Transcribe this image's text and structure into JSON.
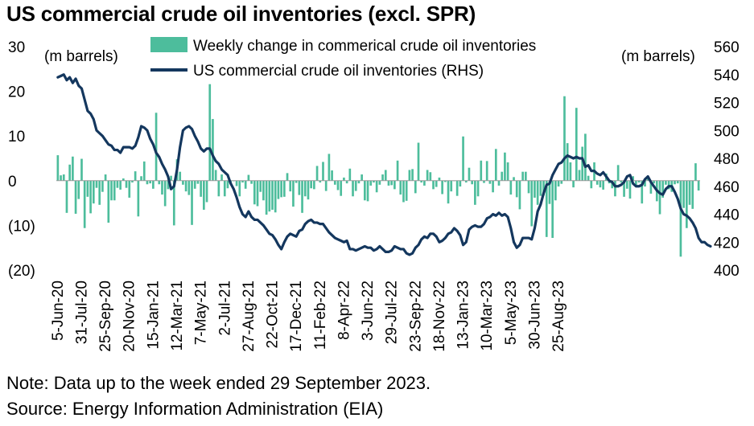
{
  "title": "US commercial crude oil inventories (excl. SPR)",
  "note": "Note: Data up to the week ended 29 September 2023.",
  "source": "Source: Energy Information Administration (EIA)",
  "colors": {
    "bar": "#4dbd9c",
    "line": "#14375e"
  },
  "chart_data": {
    "type": "bar+line",
    "left_axis_unit": "(m barrels)",
    "right_axis_unit": "(m barrels)",
    "left_ticks": [
      "30",
      "20",
      "10",
      "0",
      "(10)",
      "(20)"
    ],
    "left_ylim": [
      -20,
      30
    ],
    "right_ticks": [
      "560",
      "540",
      "520",
      "500",
      "480",
      "460",
      "440",
      "420",
      "400"
    ],
    "right_ylim": [
      400,
      560
    ],
    "x_ticks": [
      "5-Jun-20",
      "31-Jul-20",
      "25-Sep-20",
      "20-Nov-20",
      "15-Jan-21",
      "12-Mar-21",
      "7-May-21",
      "2-Jul-21",
      "27-Aug-21",
      "22-Oct-21",
      "17-Dec-21",
      "11-Feb-22",
      "8-Apr-22",
      "3-Jun-22",
      "29-Jul-22",
      "23-Sep-22",
      "18-Nov-22",
      "13-Jan-23",
      "10-Mar-23",
      "5-May-23",
      "30-Jun-23",
      "25-Aug-23"
    ],
    "series": [
      {
        "name": "Weekly change in commerical crude oil inventories",
        "type": "bar",
        "axis": "left",
        "values": [
          5.7,
          1.2,
          1.4,
          -7.2,
          3.6,
          5.4,
          -7.4,
          -4.1,
          4.9,
          -10.6,
          -3.6,
          -7.3,
          -5.1,
          -1.6,
          -5.4,
          -2.5,
          1.4,
          -9.4,
          -4.4,
          -4.4,
          -1.6,
          -2,
          0.5,
          -1.6,
          -3.8,
          -0.4,
          2.1,
          -8,
          1,
          4.3,
          -0.8,
          -0.6,
          -1.8,
          15.2,
          -0.8,
          -3.1,
          -5.7,
          -1.9,
          1.1,
          -10,
          4.8,
          2,
          -0.9,
          -2.4,
          -3.2,
          -9.9,
          -1.8,
          -0.7,
          -3.6,
          -6.5,
          -4.8,
          21.6,
          13.8,
          2.4,
          -3.5,
          1.4,
          -3.5,
          -1.7,
          -0.6,
          -0.1,
          -1.2,
          -3.5,
          -0.4,
          -1.8,
          1.3,
          -0.7,
          -5.3,
          -5.7,
          -2.5,
          -4.4,
          -7.6,
          -6.9,
          -6.5,
          -7.1,
          -4.1,
          -3.7,
          -3.6,
          1.7,
          -2.4,
          -5.8,
          -0.5,
          -3.2,
          -7.2,
          -3.5,
          -4.2,
          -1.7,
          -1.9,
          3.3,
          -0.4,
          4.2,
          -2.3,
          6,
          2.3,
          -0.9,
          -2.1,
          -3.4,
          0.7,
          -0.6,
          2.7,
          -3.5,
          -2.3,
          -0.6,
          1.4,
          -4.4,
          -4.6,
          -1.1,
          -0.4,
          -2.6,
          -0.9,
          1.4,
          2.4,
          -1.1,
          -1,
          -1.9,
          4.5,
          -3.1,
          -4.8,
          -4.5,
          2.4,
          2.6,
          -2.8,
          8.5,
          -0.4,
          -1.1,
          2.4,
          1.9,
          -1.9,
          -1.4,
          0.7,
          -3,
          -0.3,
          -5.1,
          -2.4,
          -0.1,
          -3.4,
          -1.3,
          9.9,
          -0.4,
          2.9,
          -0.8,
          -5.4,
          -3.5,
          4.5,
          -0.5,
          4.4,
          -0.7,
          -2.6,
          7.1,
          -1.1,
          2,
          6.3,
          4.1,
          -3.1,
          0.8,
          -3.7,
          -6.4,
          2,
          2,
          -2.8,
          -10.2,
          -3.8,
          -5.4,
          -3.4,
          -3.3,
          -12.6,
          -5.2,
          -12.8,
          -4.4,
          -1.3,
          -0.7,
          18.9,
          8.4,
          4.1,
          -1.5,
          16.3,
          2.4,
          7.6,
          10.5,
          1.1,
          -1.7,
          4.1,
          -0.9,
          -1.5,
          -2,
          1.6,
          -0.6,
          -1.7,
          -3.5,
          3.5,
          -0.4,
          -3.6,
          -1.8,
          -4,
          1,
          -1.4,
          -0.4,
          -5.1,
          -1.3,
          1.1,
          -2.9,
          -0.6,
          -4.6,
          -7.5,
          -3.8,
          -0.9,
          -1.9,
          -2.5,
          -0.8,
          -0.6,
          -17,
          -6.1,
          -10.6,
          -5.4,
          -6.3,
          3.9,
          -2.2
        ]
      },
      {
        "name": "US commercial crude oil inventories (RHS)",
        "type": "line",
        "axis": "right",
        "values": [
          538,
          539,
          540,
          536,
          538,
          534,
          537,
          532,
          530,
          522,
          514,
          512,
          508,
          500,
          498,
          496,
          493,
          490,
          489,
          486,
          486,
          484,
          488,
          488,
          488,
          487,
          489,
          495,
          503,
          502,
          500,
          494,
          490,
          484,
          481,
          476,
          472,
          467,
          458,
          460,
          472,
          488,
          500,
          502,
          503,
          501,
          496,
          492,
          487,
          485,
          487,
          487,
          482,
          478,
          476,
          472,
          470,
          468,
          462,
          458,
          452,
          445,
          440,
          438,
          442,
          438,
          436,
          436,
          434,
          432,
          429,
          426,
          425,
          422,
          418,
          415,
          420,
          424,
          426,
          425,
          424,
          428,
          429,
          433,
          435,
          436,
          434,
          434,
          433,
          433,
          430,
          427,
          425,
          423,
          422,
          421,
          420,
          421,
          415,
          415,
          414,
          415,
          416,
          417,
          416,
          416,
          414,
          415,
          417,
          415,
          413,
          413,
          414,
          417,
          416,
          415,
          415,
          412,
          411,
          412,
          416,
          418,
          422,
          424,
          423,
          426,
          426,
          424,
          420,
          421,
          423,
          426,
          427,
          430,
          428,
          425,
          418,
          420,
          429,
          431,
          432,
          431,
          431,
          433,
          437,
          438,
          440,
          439,
          441,
          439,
          440,
          438,
          430,
          420,
          416,
          418,
          423,
          423,
          423,
          422,
          430,
          442,
          447,
          455,
          461,
          462,
          468,
          472,
          476,
          477,
          480,
          482,
          481,
          480,
          481,
          480,
          480,
          474,
          475,
          471,
          471,
          469,
          468,
          470,
          467,
          464,
          463,
          460,
          460,
          461,
          463,
          467,
          468,
          462,
          460,
          460,
          461,
          465,
          467,
          463,
          460,
          457,
          455,
          454,
          458,
          460,
          460,
          456,
          451,
          444,
          440,
          439,
          437,
          434,
          430,
          423,
          420,
          420,
          418,
          417
        ]
      }
    ]
  }
}
